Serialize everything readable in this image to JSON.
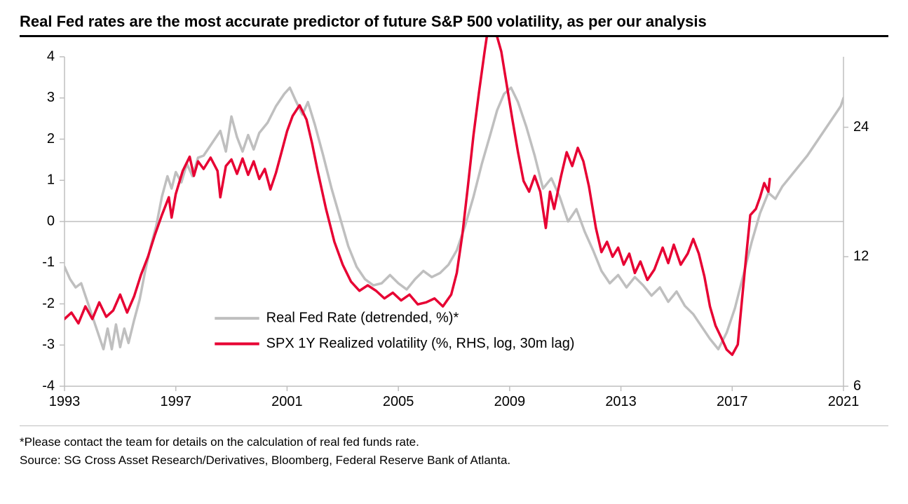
{
  "title": "Real Fed rates are the most accurate predictor of future S&P 500 volatility, as per our analysis",
  "title_fontsize": 22,
  "footnote": "*Please contact the team for details on the calculation of real fed funds rate.",
  "source": "Source: SG Cross Asset Research/Derivatives, Bloomberg, Federal Reserve Bank of Atlanta.",
  "footnote_fontsize": 17,
  "chart": {
    "type": "line-dual-axis",
    "background_color": "#ffffff",
    "axis_color": "#bfbfbf",
    "axis_label_color": "#000000",
    "axis_label_fontsize": 20,
    "axis_line_width": 1.5,
    "zero_line_color": "#bfbfbf",
    "x": {
      "min": 1993,
      "max": 2021,
      "ticks": [
        1993,
        1997,
        2001,
        2005,
        2009,
        2013,
        2017,
        2021
      ]
    },
    "y_left": {
      "min": -4,
      "max": 4,
      "ticks": [
        -4,
        -3,
        -2,
        -1,
        0,
        1,
        2,
        3,
        4
      ]
    },
    "y_right": {
      "log": true,
      "min_v": 6,
      "max_v_eff": 35,
      "ticks": [
        6,
        12,
        24
      ]
    },
    "legend": {
      "x": 1998.4,
      "y_top": -2.35,
      "line_length_years": 1.6,
      "gap_years": 0.25,
      "row_gap": 0.62,
      "fontsize": 20,
      "items": [
        {
          "label": "Real Fed Rate (detrended, %)*",
          "color": "#bfbfbf",
          "width": 4
        },
        {
          "label": "SPX 1Y Realized volatility (%, RHS, log, 30m lag)",
          "color": "#e70033",
          "width": 4
        }
      ]
    },
    "series": [
      {
        "name": "Real Fed Rate (detrended, %)*",
        "axis": "left",
        "color": "#bfbfbf",
        "width": 3.5,
        "data": [
          [
            1993.0,
            -1.1
          ],
          [
            1993.2,
            -1.4
          ],
          [
            1993.4,
            -1.6
          ],
          [
            1993.6,
            -1.5
          ],
          [
            1993.8,
            -1.9
          ],
          [
            1994.0,
            -2.3
          ],
          [
            1994.2,
            -2.7
          ],
          [
            1994.4,
            -3.1
          ],
          [
            1994.55,
            -2.6
          ],
          [
            1994.7,
            -3.1
          ],
          [
            1994.85,
            -2.5
          ],
          [
            1995.0,
            -3.05
          ],
          [
            1995.15,
            -2.6
          ],
          [
            1995.3,
            -2.95
          ],
          [
            1995.5,
            -2.4
          ],
          [
            1995.7,
            -1.9
          ],
          [
            1995.9,
            -1.2
          ],
          [
            1996.1,
            -0.6
          ],
          [
            1996.3,
            -0.1
          ],
          [
            1996.5,
            0.6
          ],
          [
            1996.7,
            1.1
          ],
          [
            1996.85,
            0.8
          ],
          [
            1997.0,
            1.2
          ],
          [
            1997.2,
            0.95
          ],
          [
            1997.4,
            1.4
          ],
          [
            1997.6,
            1.1
          ],
          [
            1997.8,
            1.55
          ],
          [
            1998.0,
            1.6
          ],
          [
            1998.3,
            1.9
          ],
          [
            1998.6,
            2.2
          ],
          [
            1998.8,
            1.7
          ],
          [
            1999.0,
            2.55
          ],
          [
            1999.2,
            2.05
          ],
          [
            1999.4,
            1.7
          ],
          [
            1999.6,
            2.1
          ],
          [
            1999.8,
            1.75
          ],
          [
            2000.0,
            2.15
          ],
          [
            2000.3,
            2.4
          ],
          [
            2000.6,
            2.8
          ],
          [
            2000.9,
            3.1
          ],
          [
            2001.1,
            3.25
          ],
          [
            2001.3,
            2.95
          ],
          [
            2001.55,
            2.6
          ],
          [
            2001.75,
            2.9
          ],
          [
            2002.0,
            2.35
          ],
          [
            2002.3,
            1.6
          ],
          [
            2002.6,
            0.8
          ],
          [
            2002.9,
            0.1
          ],
          [
            2003.2,
            -0.6
          ],
          [
            2003.5,
            -1.1
          ],
          [
            2003.8,
            -1.4
          ],
          [
            2004.1,
            -1.55
          ],
          [
            2004.4,
            -1.5
          ],
          [
            2004.7,
            -1.3
          ],
          [
            2005.0,
            -1.5
          ],
          [
            2005.3,
            -1.65
          ],
          [
            2005.6,
            -1.4
          ],
          [
            2005.9,
            -1.2
          ],
          [
            2006.2,
            -1.35
          ],
          [
            2006.5,
            -1.25
          ],
          [
            2006.8,
            -1.05
          ],
          [
            2007.1,
            -0.7
          ],
          [
            2007.4,
            -0.1
          ],
          [
            2007.7,
            0.6
          ],
          [
            2008.0,
            1.4
          ],
          [
            2008.3,
            2.1
          ],
          [
            2008.55,
            2.7
          ],
          [
            2008.8,
            3.1
          ],
          [
            2009.05,
            3.25
          ],
          [
            2009.3,
            2.9
          ],
          [
            2009.6,
            2.3
          ],
          [
            2009.9,
            1.6
          ],
          [
            2010.2,
            0.8
          ],
          [
            2010.5,
            1.05
          ],
          [
            2010.8,
            0.6
          ],
          [
            2011.1,
            0.0
          ],
          [
            2011.4,
            0.3
          ],
          [
            2011.7,
            -0.25
          ],
          [
            2012.0,
            -0.7
          ],
          [
            2012.3,
            -1.2
          ],
          [
            2012.6,
            -1.5
          ],
          [
            2012.9,
            -1.3
          ],
          [
            2013.2,
            -1.6
          ],
          [
            2013.5,
            -1.35
          ],
          [
            2013.8,
            -1.55
          ],
          [
            2014.1,
            -1.8
          ],
          [
            2014.4,
            -1.6
          ],
          [
            2014.7,
            -1.95
          ],
          [
            2015.0,
            -1.7
          ],
          [
            2015.3,
            -2.05
          ],
          [
            2015.6,
            -2.25
          ],
          [
            2015.9,
            -2.55
          ],
          [
            2016.2,
            -2.85
          ],
          [
            2016.5,
            -3.1
          ],
          [
            2016.8,
            -2.7
          ],
          [
            2017.1,
            -2.1
          ],
          [
            2017.4,
            -1.3
          ],
          [
            2017.7,
            -0.5
          ],
          [
            2018.0,
            0.2
          ],
          [
            2018.3,
            0.7
          ],
          [
            2018.55,
            0.55
          ],
          [
            2018.8,
            0.85
          ],
          [
            2019.1,
            1.1
          ],
          [
            2019.4,
            1.35
          ],
          [
            2019.7,
            1.6
          ],
          [
            2020.0,
            1.9
          ],
          [
            2020.3,
            2.2
          ],
          [
            2020.6,
            2.5
          ],
          [
            2020.9,
            2.8
          ],
          [
            2021.0,
            3.0
          ]
        ]
      },
      {
        "name": "SPX 1Y Realized volatility",
        "axis": "right",
        "color": "#e70033",
        "width": 3.5,
        "data": [
          [
            1993.0,
            8.6
          ],
          [
            1993.25,
            8.9
          ],
          [
            1993.5,
            8.4
          ],
          [
            1993.75,
            9.2
          ],
          [
            1994.0,
            8.6
          ],
          [
            1994.25,
            9.4
          ],
          [
            1994.5,
            8.7
          ],
          [
            1994.75,
            9.0
          ],
          [
            1995.0,
            9.8
          ],
          [
            1995.25,
            8.9
          ],
          [
            1995.5,
            9.7
          ],
          [
            1995.75,
            10.9
          ],
          [
            1996.0,
            12.0
          ],
          [
            1996.25,
            13.5
          ],
          [
            1996.5,
            15.0
          ],
          [
            1996.75,
            16.5
          ],
          [
            1996.85,
            14.8
          ],
          [
            1997.0,
            16.8
          ],
          [
            1997.25,
            19.0
          ],
          [
            1997.5,
            20.5
          ],
          [
            1997.65,
            18.5
          ],
          [
            1997.8,
            20.0
          ],
          [
            1998.0,
            19.2
          ],
          [
            1998.25,
            20.4
          ],
          [
            1998.5,
            19.0
          ],
          [
            1998.6,
            16.5
          ],
          [
            1998.8,
            19.5
          ],
          [
            1999.0,
            20.2
          ],
          [
            1999.2,
            18.7
          ],
          [
            1999.4,
            20.3
          ],
          [
            1999.6,
            18.6
          ],
          [
            1999.8,
            20.0
          ],
          [
            2000.0,
            18.2
          ],
          [
            2000.2,
            19.2
          ],
          [
            2000.4,
            17.2
          ],
          [
            2000.6,
            18.8
          ],
          [
            2000.8,
            21.0
          ],
          [
            2001.0,
            23.5
          ],
          [
            2001.2,
            25.5
          ],
          [
            2001.45,
            27.0
          ],
          [
            2001.7,
            25.0
          ],
          [
            2001.9,
            22.0
          ],
          [
            2002.1,
            19.0
          ],
          [
            2002.4,
            15.5
          ],
          [
            2002.7,
            13.0
          ],
          [
            2003.0,
            11.5
          ],
          [
            2003.3,
            10.5
          ],
          [
            2003.6,
            10.0
          ],
          [
            2003.9,
            10.3
          ],
          [
            2004.2,
            10.0
          ],
          [
            2004.5,
            9.6
          ],
          [
            2004.8,
            9.9
          ],
          [
            2005.1,
            9.5
          ],
          [
            2005.4,
            9.8
          ],
          [
            2005.7,
            9.3
          ],
          [
            2006.0,
            9.4
          ],
          [
            2006.3,
            9.6
          ],
          [
            2006.6,
            9.2
          ],
          [
            2006.9,
            9.8
          ],
          [
            2007.1,
            11.0
          ],
          [
            2007.3,
            13.5
          ],
          [
            2007.5,
            17.5
          ],
          [
            2007.7,
            23.0
          ],
          [
            2007.9,
            29.0
          ],
          [
            2008.1,
            36.0
          ],
          [
            2008.3,
            44.0
          ],
          [
            2008.5,
            40.0
          ],
          [
            2008.7,
            36.0
          ],
          [
            2008.9,
            30.0
          ],
          [
            2009.1,
            25.0
          ],
          [
            2009.3,
            21.0
          ],
          [
            2009.5,
            18.0
          ],
          [
            2009.7,
            17.0
          ],
          [
            2009.9,
            18.5
          ],
          [
            2010.1,
            17.0
          ],
          [
            2010.3,
            14.0
          ],
          [
            2010.45,
            17.0
          ],
          [
            2010.6,
            15.5
          ],
          [
            2010.85,
            18.5
          ],
          [
            2011.05,
            21.0
          ],
          [
            2011.25,
            19.5
          ],
          [
            2011.45,
            21.5
          ],
          [
            2011.65,
            20.0
          ],
          [
            2011.85,
            17.5
          ],
          [
            2012.1,
            14.0
          ],
          [
            2012.3,
            12.3
          ],
          [
            2012.5,
            13.0
          ],
          [
            2012.7,
            12.0
          ],
          [
            2012.9,
            12.6
          ],
          [
            2013.1,
            11.5
          ],
          [
            2013.3,
            12.2
          ],
          [
            2013.5,
            11.0
          ],
          [
            2013.7,
            11.7
          ],
          [
            2013.95,
            10.6
          ],
          [
            2014.2,
            11.2
          ],
          [
            2014.5,
            12.6
          ],
          [
            2014.7,
            11.6
          ],
          [
            2014.9,
            12.8
          ],
          [
            2015.15,
            11.5
          ],
          [
            2015.4,
            12.2
          ],
          [
            2015.6,
            13.2
          ],
          [
            2015.8,
            12.2
          ],
          [
            2016.0,
            10.8
          ],
          [
            2016.2,
            9.2
          ],
          [
            2016.4,
            8.3
          ],
          [
            2016.6,
            7.8
          ],
          [
            2016.8,
            7.3
          ],
          [
            2017.0,
            7.1
          ],
          [
            2017.2,
            7.5
          ],
          [
            2017.35,
            9.5
          ],
          [
            2017.5,
            12.0
          ],
          [
            2017.65,
            15.0
          ],
          [
            2017.85,
            15.5
          ],
          [
            2018.0,
            16.5
          ],
          [
            2018.15,
            17.8
          ],
          [
            2018.3,
            17.0
          ],
          [
            2018.35,
            18.2
          ]
        ]
      }
    ],
    "clip_top_overflow": true
  }
}
